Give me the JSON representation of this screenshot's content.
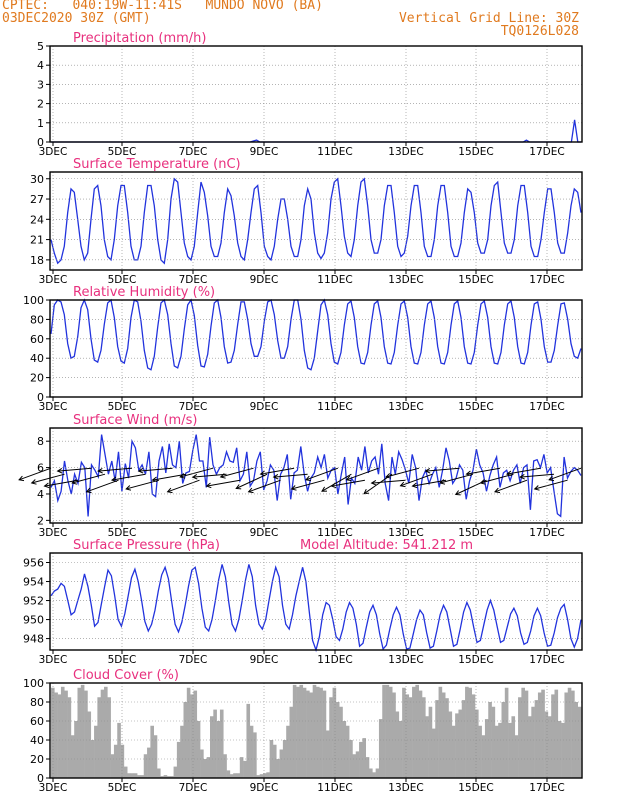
{
  "header": {
    "left_line1": "CPTEC:   040:19W-11:41S   MUNDO NOVO (BA)",
    "left_line2": "03DEC2020 30Z (GMT)",
    "right_line1": "Vertical Grid Line: 30Z",
    "right_line2": "TQ0126L028",
    "color": "#e07a1f"
  },
  "colors": {
    "title": "#e8307e",
    "series": "#2233dd",
    "cloud": "#aaaaaa",
    "grid": "#888888"
  },
  "chart_data": [
    {
      "type": "line",
      "title": "Precipitation (mm/h)",
      "x_tick_labels": [
        "3DEC",
        "5DEC",
        "7DEC",
        "9DEC",
        "11DEC",
        "13DEC",
        "15DEC",
        "17DEC"
      ],
      "ylim": [
        0,
        5
      ],
      "yticks": [
        0,
        1,
        2,
        3,
        4,
        5
      ],
      "series": [
        {
          "values": [
            0,
            0,
            0,
            0,
            0,
            0,
            0,
            0,
            0,
            0,
            0,
            0,
            0,
            0,
            0,
            0,
            0,
            0,
            0,
            0,
            0,
            0,
            0,
            0,
            0,
            0,
            0,
            0,
            0,
            0,
            0,
            0,
            0,
            0,
            0,
            0,
            0,
            0,
            0,
            0,
            0,
            0,
            0,
            0,
            0,
            0,
            0,
            0,
            0,
            0,
            0,
            0,
            0,
            0,
            0,
            0,
            0,
            0,
            0,
            0,
            0,
            0,
            0,
            0.05,
            0.1,
            0,
            0,
            0,
            0,
            0,
            0,
            0,
            0,
            0,
            0,
            0,
            0,
            0,
            0,
            0,
            0,
            0,
            0,
            0,
            0,
            0,
            0,
            0,
            0,
            0,
            0,
            0,
            0,
            0,
            0,
            0,
            0,
            0,
            0,
            0,
            0,
            0,
            0,
            0,
            0,
            0,
            0,
            0,
            0,
            0,
            0,
            0,
            0,
            0,
            0,
            0,
            0,
            0,
            0,
            0,
            0,
            0,
            0,
            0,
            0,
            0,
            0,
            0,
            0,
            0,
            0,
            0,
            0,
            0,
            0,
            0,
            0,
            0,
            0,
            0,
            0,
            0,
            0,
            0,
            0,
            0,
            0,
            0,
            0.1,
            0,
            0,
            0,
            0,
            0,
            0,
            0,
            0,
            0,
            0,
            0,
            0,
            0,
            0,
            1.15,
            0,
            0
          ]
        }
      ]
    },
    {
      "type": "line",
      "title": "Surface Temperature (nC)",
      "x_tick_labels": [
        "3DEC",
        "5DEC",
        "7DEC",
        "9DEC",
        "11DEC",
        "13DEC",
        "15DEC",
        "17DEC"
      ],
      "ylim": [
        16.5,
        31
      ],
      "yticks": [
        18,
        21,
        24,
        27,
        30
      ],
      "series": [
        {
          "values": [
            21,
            19,
            17.5,
            18,
            20,
            25,
            28.5,
            28,
            24,
            20,
            18,
            19,
            24,
            28.5,
            29,
            26,
            21,
            18.5,
            18,
            21,
            26,
            29,
            29,
            25,
            20,
            18,
            18,
            20,
            25,
            29,
            29,
            26,
            21,
            18,
            17.5,
            21,
            27,
            30,
            29.5,
            25,
            20.5,
            18.5,
            18,
            20,
            25,
            29.5,
            28,
            24.5,
            20,
            18.5,
            18.5,
            20.5,
            25,
            28.5,
            27.5,
            24.5,
            20.5,
            18.5,
            18,
            21,
            25,
            28.5,
            29,
            25,
            20,
            18.5,
            18,
            20,
            24,
            27,
            27,
            24,
            20,
            18.5,
            18.5,
            21,
            26,
            28.5,
            27,
            22,
            19,
            18.2,
            19,
            22,
            27,
            29.5,
            30,
            26,
            21.5,
            19,
            18.5,
            21,
            26,
            29.5,
            30,
            26,
            21,
            19,
            19,
            21,
            26,
            29,
            29,
            25,
            20,
            18.5,
            19,
            21.5,
            26,
            29,
            29,
            25,
            20,
            18.5,
            18.5,
            21,
            26,
            29,
            29,
            25,
            20,
            18.5,
            18.5,
            20.5,
            25,
            28.5,
            28,
            25,
            20.5,
            19,
            19,
            21,
            26,
            29,
            29.5,
            25,
            20.5,
            19,
            19,
            21,
            26,
            29,
            29,
            25,
            20,
            18.5,
            18.5,
            21,
            25,
            28.5,
            28.5,
            25,
            20.5,
            19,
            19,
            22,
            26,
            28.5,
            28,
            25
          ]
        }
      ]
    },
    {
      "type": "line",
      "title": "Relative Humidity (%)",
      "x_tick_labels": [
        "3DEC",
        "5DEC",
        "7DEC",
        "9DEC",
        "11DEC",
        "13DEC",
        "15DEC",
        "17DEC"
      ],
      "ylim": [
        0,
        100
      ],
      "yticks": [
        0,
        20,
        40,
        60,
        80,
        100
      ],
      "series": [
        {
          "values": [
            65,
            95,
            100,
            98,
            85,
            55,
            40,
            42,
            62,
            92,
            100,
            90,
            60,
            38,
            36,
            48,
            75,
            97,
            100,
            82,
            52,
            37,
            35,
            50,
            82,
            100,
            98,
            78,
            48,
            30,
            28,
            42,
            72,
            97,
            100,
            85,
            55,
            32,
            30,
            42,
            70,
            95,
            100,
            84,
            53,
            32,
            31,
            44,
            73,
            97,
            100,
            82,
            52,
            35,
            36,
            48,
            75,
            98,
            98,
            80,
            55,
            42,
            42,
            52,
            78,
            98,
            100,
            85,
            58,
            40,
            40,
            52,
            80,
            100,
            100,
            80,
            48,
            30,
            28,
            40,
            68,
            95,
            100,
            85,
            55,
            36,
            34,
            46,
            74,
            96,
            99,
            82,
            52,
            35,
            34,
            46,
            74,
            96,
            99,
            82,
            52,
            35,
            34,
            46,
            74,
            96,
            99,
            82,
            52,
            35,
            34,
            46,
            74,
            96,
            99,
            82,
            52,
            35,
            34,
            46,
            74,
            96,
            99,
            82,
            52,
            35,
            34,
            46,
            74,
            96,
            99,
            82,
            52,
            35,
            34,
            46,
            74,
            96,
            99,
            82,
            52,
            35,
            34,
            46,
            74,
            96,
            98,
            80,
            52,
            36,
            36,
            48,
            74,
            96,
            97,
            80,
            55,
            42,
            40,
            50
          ]
        }
      ]
    },
    {
      "type": "line",
      "title": "Surface Wind (m/s)",
      "x_tick_labels": [
        "3DEC",
        "5DEC",
        "7DEC",
        "9DEC",
        "11DEC",
        "13DEC",
        "15DEC",
        "17DEC"
      ],
      "ylim": [
        1.8,
        9
      ],
      "yticks": [
        2,
        4,
        6,
        8
      ],
      "series": [
        {
          "values": [
            4.5,
            5,
            3.5,
            4.2,
            6.5,
            5,
            4,
            5.5,
            4.8,
            6.4,
            6,
            2.3,
            6.2,
            5.8,
            5.3,
            8.5,
            7,
            5.5,
            6.5,
            5,
            7.2,
            4.2,
            6.3,
            5.2,
            8,
            7.5,
            5.8,
            6.2,
            5.5,
            7.2,
            4,
            3.8,
            6.5,
            7.6,
            5.6,
            7.8,
            6.2,
            6,
            8,
            4.8,
            5.6,
            5.7,
            7.3,
            8.5,
            6.5,
            6.5,
            4.5,
            8.3,
            6.2,
            5.5,
            6,
            6.2,
            7.2,
            6.5,
            6.4,
            7.5,
            5,
            5.5,
            7.2,
            4.6,
            5,
            6.5,
            7.2,
            4.3,
            5,
            6.2,
            5.8,
            3.5,
            5.5,
            6,
            7,
            3.6,
            5.6,
            5.8,
            7.6,
            5.5,
            4.2,
            5.2,
            5.6,
            6.8,
            6,
            7,
            5.2,
            5.8,
            6,
            4,
            5.5,
            6.8,
            3.2,
            5.2,
            4.8,
            6.8,
            5.8,
            7.6,
            5.6,
            6.5,
            6.8,
            5.5,
            7.8,
            4.8,
            3.5,
            6.8,
            5.5,
            7.2,
            6.6,
            5.8,
            4.8,
            7,
            6,
            3.5,
            5.2,
            5.8,
            4.8,
            5.5,
            6,
            4.5,
            5.8,
            7.5,
            6.5,
            4.8,
            5.2,
            6.2,
            5.8,
            3.6,
            5,
            5.8,
            7.4,
            6.2,
            5.6,
            4.2,
            5.4,
            6.2,
            6.8,
            4.5,
            5.6,
            5.8,
            5,
            5.8,
            6.2,
            4.8,
            6,
            6.2,
            2.8,
            6.5,
            6.6,
            6,
            7,
            5.6,
            6,
            4.2,
            2.5,
            2.3,
            6.8,
            5.2,
            5.7,
            6,
            5.8,
            5.4
          ]
        }
      ],
      "arrow_directions_deg": [
        200,
        195,
        190,
        185,
        195,
        200,
        185,
        190,
        195,
        185,
        190,
        200,
        195,
        185,
        190,
        195,
        205,
        200,
        190,
        185,
        195,
        200,
        210,
        190,
        200,
        215,
        185,
        195,
        200,
        190,
        185,
        195,
        205,
        190,
        195,
        200,
        190,
        185,
        195,
        200
      ]
    },
    {
      "type": "line",
      "title": "Surface Pressure (hPa)",
      "annotation": "Model Altitude: 541.212 m",
      "x_tick_labels": [
        "3DEC",
        "5DEC",
        "7DEC",
        "9DEC",
        "11DEC",
        "13DEC",
        "15DEC",
        "17DEC"
      ],
      "ylim": [
        946.8,
        957
      ],
      "yticks": [
        948,
        950,
        952,
        954,
        956
      ],
      "series": [
        {
          "values": [
            952.5,
            953,
            953.2,
            953.8,
            953.5,
            952,
            950.5,
            950.8,
            952,
            953.2,
            954.8,
            953.5,
            951.5,
            949.3,
            949.7,
            951.6,
            953.5,
            955.2,
            954.6,
            952.5,
            950,
            949.3,
            950.6,
            952.5,
            954.4,
            955.3,
            954,
            952,
            949.8,
            948.8,
            949.5,
            951,
            953,
            954.7,
            955.5,
            954.3,
            951.8,
            949.5,
            948.7,
            949.7,
            951.5,
            953.5,
            955.2,
            955.5,
            953.8,
            951.2,
            949.2,
            948.8,
            950,
            952,
            954.2,
            955.8,
            954.5,
            951.8,
            949.5,
            948.8,
            950,
            952,
            954.2,
            955.8,
            954.5,
            951.5,
            949.5,
            949,
            950,
            952,
            954,
            955.5,
            954.5,
            951.5,
            949.5,
            949,
            950.5,
            952.5,
            954,
            955.5,
            954,
            950.8,
            947.8,
            946.8,
            948.2,
            950.5,
            951.8,
            951.5,
            950,
            948.2,
            947.8,
            949,
            950.8,
            951.8,
            951.2,
            949.5,
            947.2,
            947.5,
            949.2,
            950.8,
            951.5,
            950.5,
            948.5,
            946.9,
            947.3,
            949,
            950.5,
            951.3,
            950.5,
            948.5,
            946.9,
            947,
            948.5,
            950,
            951,
            950.5,
            948.6,
            947,
            947.2,
            948.8,
            950.5,
            951.5,
            950.8,
            949,
            947.2,
            947.4,
            949,
            950.8,
            951.8,
            951,
            949.2,
            947.6,
            947.8,
            949.4,
            951,
            952,
            951,
            949.3,
            947.6,
            947.8,
            949.2,
            950.6,
            951.2,
            950.4,
            948.6,
            947.4,
            947.6,
            948.8,
            950.4,
            951.2,
            950.4,
            948.6,
            947.2,
            947.3,
            948.6,
            950.2,
            951.2,
            951.6,
            950,
            948,
            947.1,
            948,
            950
          ]
        }
      ]
    },
    {
      "type": "bar",
      "title": "Cloud Cover (%)",
      "x_tick_labels": [
        "3DEC",
        "5DEC",
        "7DEC",
        "9DEC",
        "11DEC",
        "13DEC",
        "15DEC",
        "17DEC"
      ],
      "ylim": [
        0,
        100
      ],
      "yticks": [
        0,
        20,
        40,
        60,
        80,
        100
      ],
      "series": [
        {
          "values": [
            95,
            90,
            88,
            96,
            92,
            85,
            45,
            60,
            95,
            98,
            92,
            70,
            40,
            55,
            85,
            93,
            96,
            85,
            25,
            35,
            58,
            35,
            12,
            5,
            5,
            5,
            3,
            3,
            25,
            32,
            55,
            45,
            10,
            2,
            3,
            2,
            2,
            12,
            38,
            55,
            80,
            95,
            88,
            92,
            60,
            30,
            20,
            22,
            65,
            72,
            60,
            72,
            25,
            8,
            4,
            5,
            5,
            22,
            18,
            78,
            55,
            48,
            3,
            4,
            5,
            6,
            40,
            35,
            20,
            30,
            40,
            55,
            75,
            98,
            96,
            98,
            95,
            92,
            90,
            98,
            96,
            95,
            92,
            50,
            85,
            95,
            80,
            75,
            60,
            55,
            40,
            25,
            28,
            38,
            42,
            22,
            10,
            6,
            10,
            62,
            98,
            98,
            96,
            90,
            70,
            60,
            95,
            88,
            85,
            96,
            98,
            92,
            85,
            65,
            75,
            52,
            82,
            96,
            90,
            84,
            70,
            55,
            68,
            72,
            82,
            96,
            95,
            88,
            72,
            55,
            45,
            62,
            80,
            75,
            55,
            58,
            80,
            95,
            58,
            65,
            45,
            85,
            95,
            92,
            65,
            75,
            82,
            90,
            93,
            70,
            65,
            88,
            93,
            60,
            58,
            90,
            95,
            92,
            80,
            75
          ]
        }
      ]
    }
  ]
}
